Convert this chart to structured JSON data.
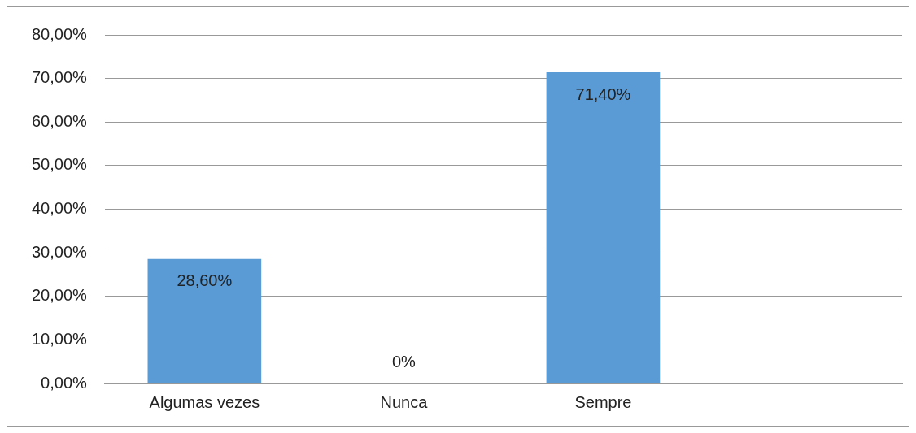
{
  "chart_data": {
    "type": "bar",
    "categories": [
      "Algumas vezes",
      "Nunca",
      "Sempre",
      null
    ],
    "values": [
      28.6,
      0,
      71.4,
      null
    ],
    "color": "#5b9bd5",
    "value_labels": [
      "28,60%",
      "0%",
      "71,40%",
      null
    ],
    "ylim": [
      0,
      80
    ],
    "yticks": [
      {
        "value": 0,
        "label": "0,00%"
      },
      {
        "value": 10,
        "label": "10,00%"
      },
      {
        "value": 20,
        "label": "20,00%"
      },
      {
        "value": 30,
        "label": "30,00%"
      },
      {
        "value": 40,
        "label": "40,00%"
      },
      {
        "value": 50,
        "label": "50,00%"
      },
      {
        "value": 60,
        "label": "60,00%"
      },
      {
        "value": 70,
        "label": "70,00%"
      },
      {
        "value": 80,
        "label": "80,00%"
      }
    ],
    "grid": "y",
    "legend": false
  }
}
